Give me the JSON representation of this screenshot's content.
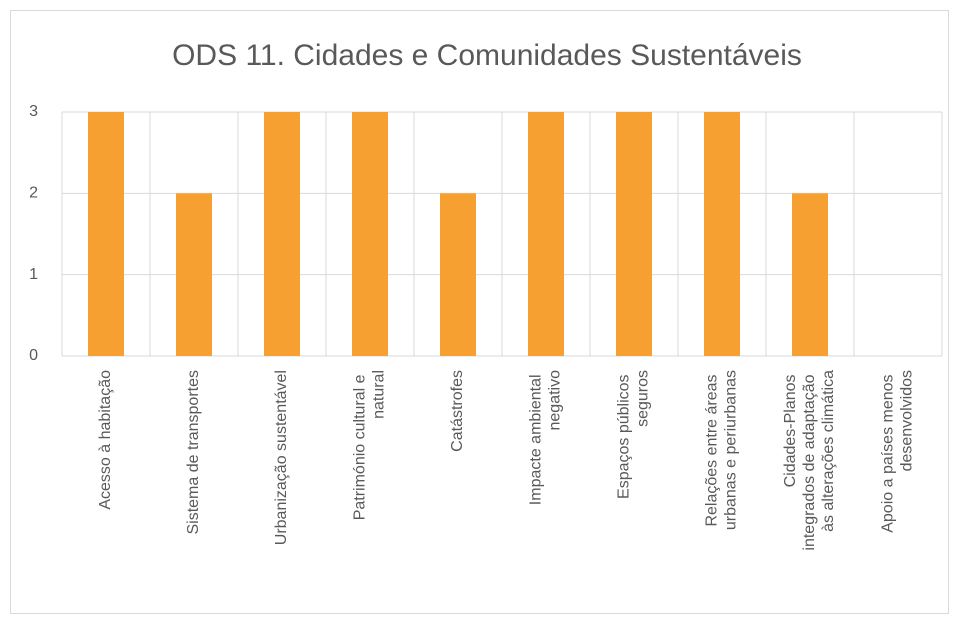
{
  "chart_data": {
    "type": "bar",
    "title": "ODS 11. Cidades e Comunidades Sustentáveis",
    "categories": [
      "Acesso à habitação",
      "Sistema de transportes",
      "Urbanização sustentável",
      "Património cultural e natural",
      "Catástrofes",
      "Impacte ambiental negativo",
      "Espaços públicos seguros",
      "Relações entre áreas urbanas e periurbanas",
      "Cidades-Planos integrados de adaptação às alterações climática",
      "Apoio a países menos desenvolvidos"
    ],
    "values": [
      3,
      2,
      3,
      3,
      2,
      3,
      3,
      3,
      2,
      0
    ],
    "color": "#f5a030",
    "ylim": [
      0,
      3
    ],
    "yticks": [
      0,
      1,
      2,
      3
    ],
    "grid": true
  }
}
